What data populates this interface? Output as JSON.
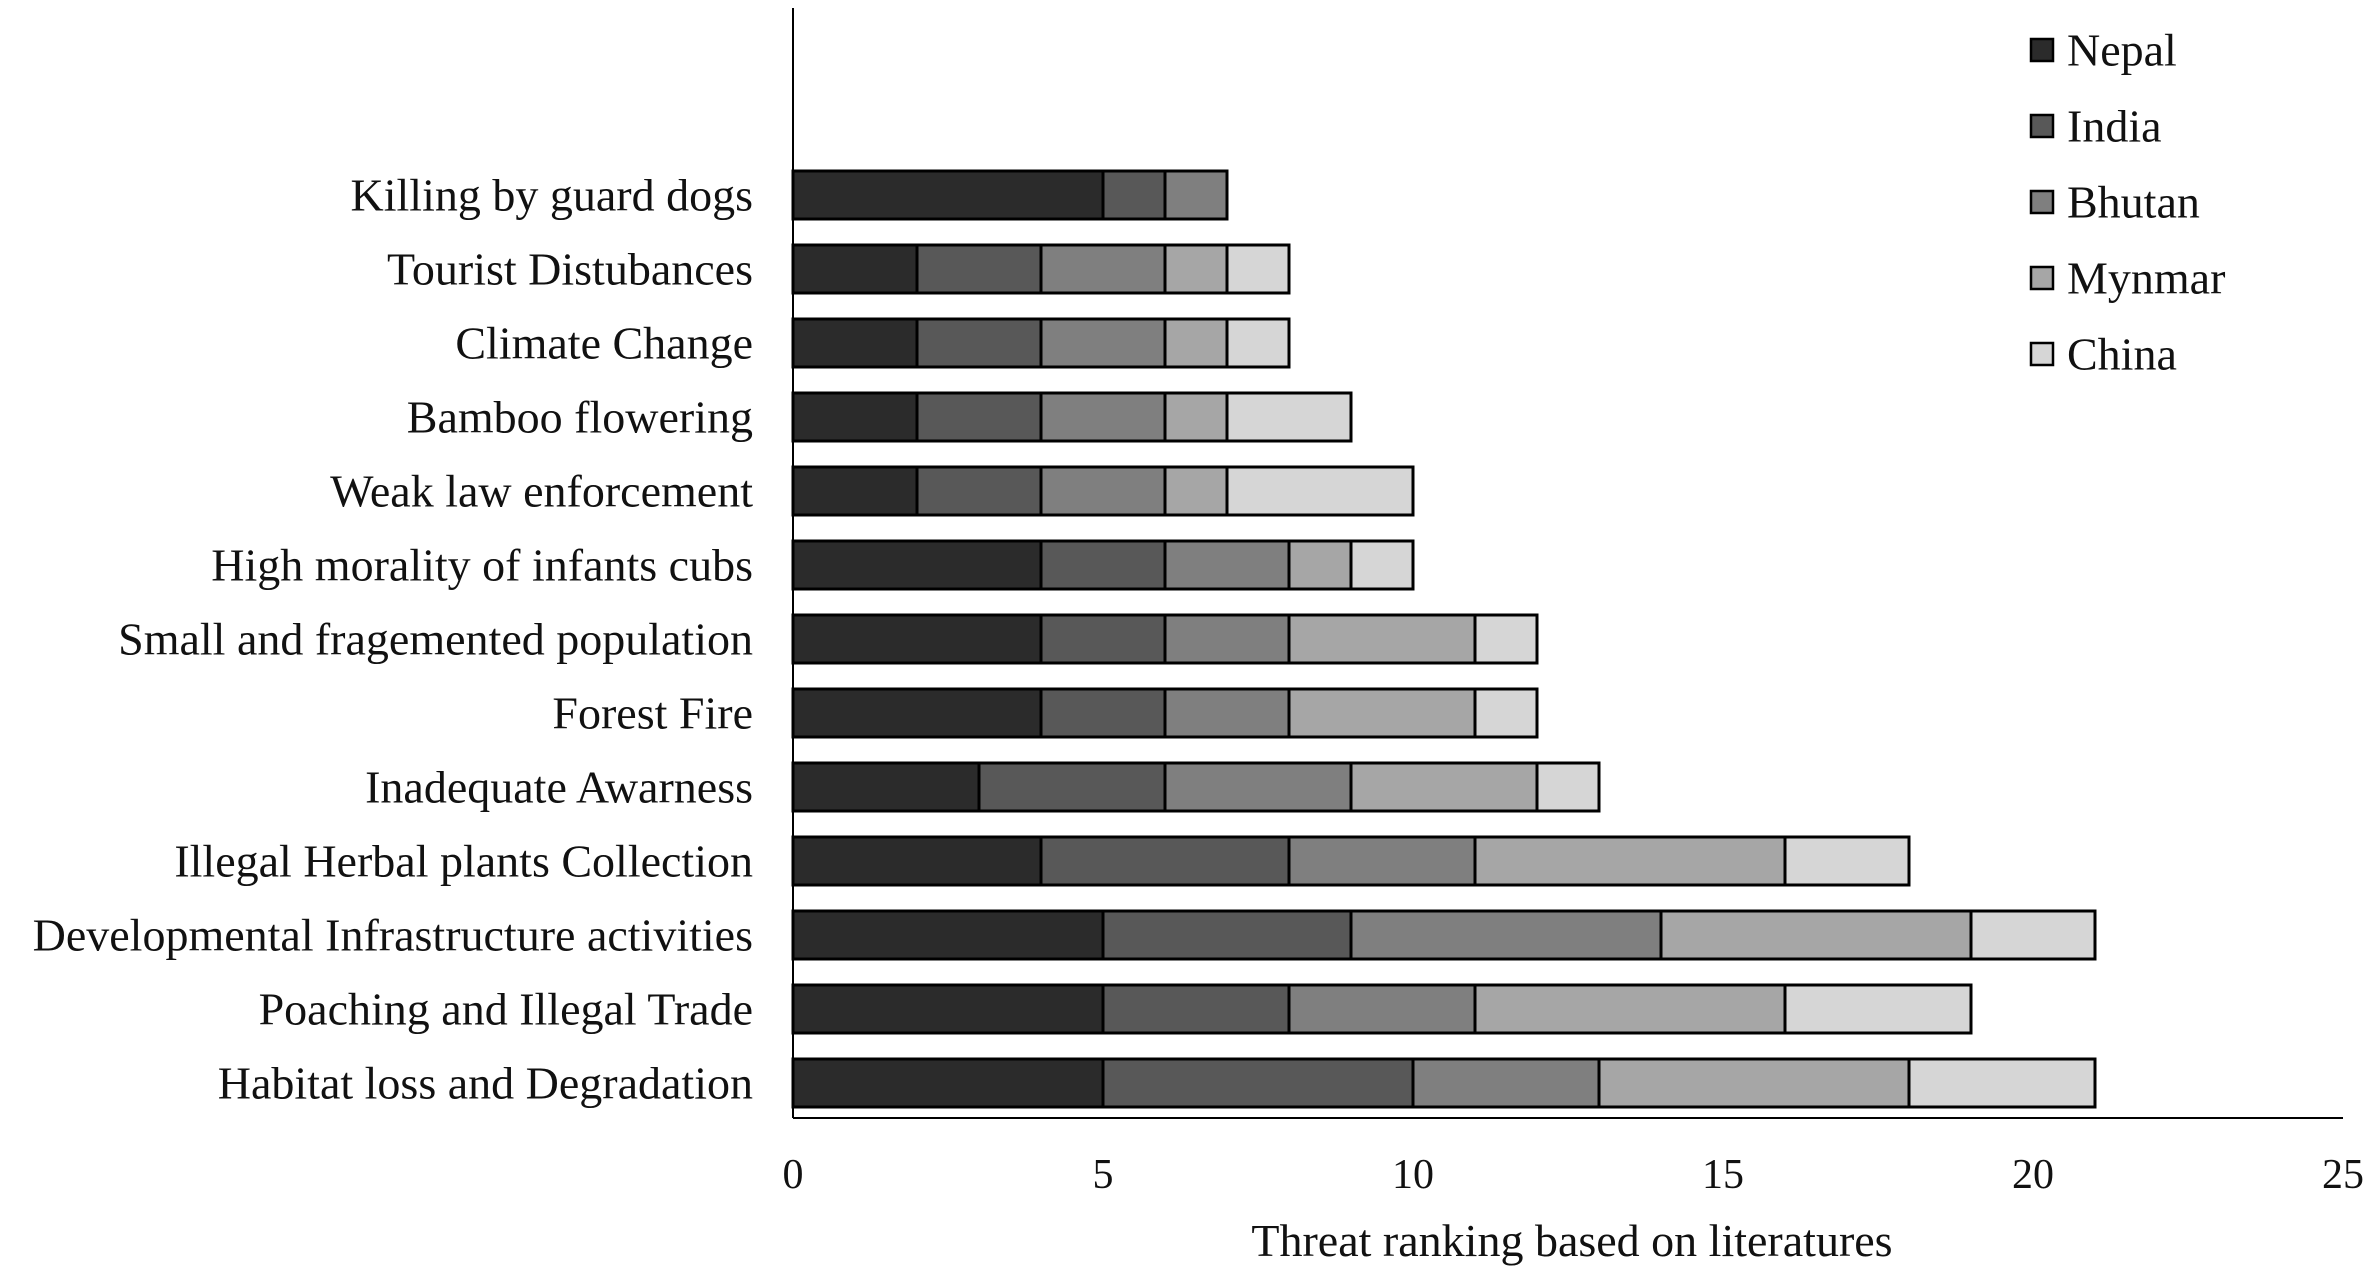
{
  "chart_data": {
    "type": "bar",
    "orientation": "horizontal",
    "stacked": true,
    "title": "",
    "xlabel": "Threat ranking based on literatures",
    "ylabel": "",
    "xlim": [
      0,
      25
    ],
    "xticks": [
      0,
      5,
      10,
      15,
      20,
      25
    ],
    "grid": false,
    "legend_position": "top-right",
    "categories": [
      "Killing by guard dogs",
      "Tourist Distubances",
      "Climate Change",
      "Bamboo flowering",
      "Weak law enforcement",
      "High morality of infants cubs",
      "Small and fragemented population",
      "Forest Fire",
      "Inadequate Awarness",
      "Illegal Herbal plants Collection",
      "Developmental Infrastructure activities",
      "Poaching and Illegal Trade",
      "Habitat loss and Degradation"
    ],
    "series": [
      {
        "name": "Nepal",
        "color": "#2b2b2b",
        "values": [
          5,
          2,
          2,
          2,
          2,
          4,
          4,
          4,
          3,
          4,
          5,
          5,
          5
        ]
      },
      {
        "name": "India",
        "color": "#585858",
        "values": [
          1,
          2,
          2,
          2,
          2,
          2,
          2,
          2,
          3,
          4,
          4,
          3,
          5
        ]
      },
      {
        "name": "Bhutan",
        "color": "#7f7f7f",
        "values": [
          1,
          2,
          2,
          2,
          2,
          2,
          2,
          2,
          3,
          3,
          5,
          3,
          3
        ]
      },
      {
        "name": "Mynmar",
        "color": "#a6a6a6",
        "values": [
          0,
          1,
          1,
          1,
          1,
          1,
          3,
          3,
          3,
          5,
          5,
          5,
          5
        ]
      },
      {
        "name": "China",
        "color": "#d6d6d6",
        "values": [
          0,
          1,
          1,
          2,
          3,
          1,
          1,
          1,
          1,
          2,
          2,
          3,
          3
        ]
      }
    ]
  }
}
